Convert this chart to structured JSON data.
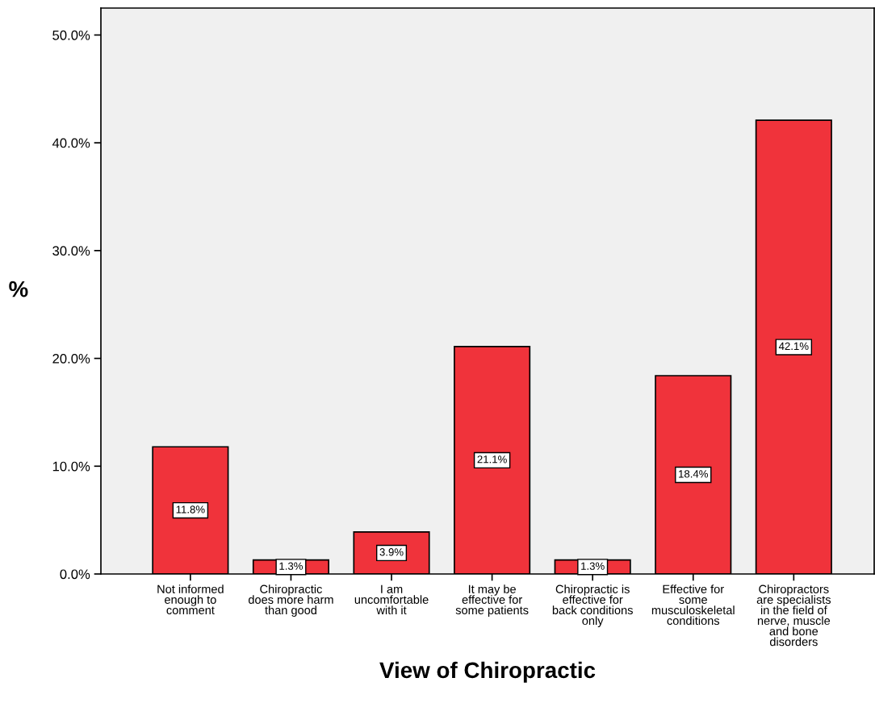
{
  "chart_data": {
    "type": "bar",
    "xlabel": "View of Chiropractic",
    "ylabel": "%",
    "categories": [
      "Not informed\nenough to\ncomment",
      "Chiropractic\ndoes more harm\nthan good",
      "I am\nuncomfortable\nwith it",
      "It may be\neffective for\nsome patients",
      "Chiropractic is\neffective for\nback conditions\nonly",
      "Effective for\nsome\nmusculoskeletal\nconditions",
      "Chiropractors\nare specialists\nin the field of\nnerve, muscle\nand bone\ndisorders"
    ],
    "values": [
      11.8,
      1.3,
      3.9,
      21.1,
      1.3,
      18.4,
      42.1
    ],
    "value_labels": [
      "11.8%",
      "1.3%",
      "3.9%",
      "21.1%",
      "1.3%",
      "18.4%",
      "42.1%"
    ],
    "color": "#f0333b",
    "ylim": [
      0,
      52.5
    ],
    "yticks": [
      {
        "value": 0,
        "label": "0.0%"
      },
      {
        "value": 10,
        "label": "10.0%"
      },
      {
        "value": 20,
        "label": "20.0%"
      },
      {
        "value": 30,
        "label": "30.0%"
      },
      {
        "value": 40,
        "label": "40.0%"
      },
      {
        "value": 50,
        "label": "50.0%"
      }
    ],
    "grid": false
  }
}
